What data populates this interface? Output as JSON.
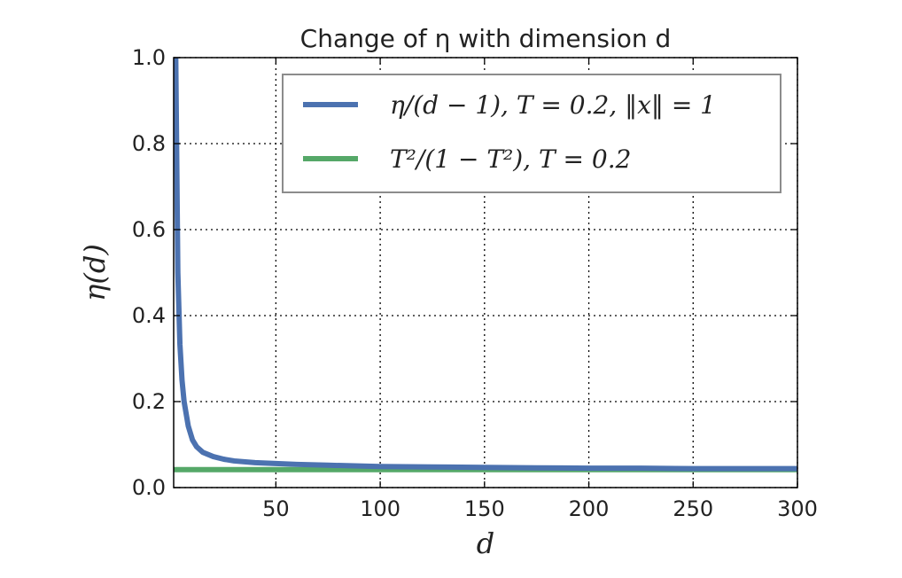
{
  "chart_data": {
    "type": "line",
    "title": "Change of η with dimension d",
    "xlabel": "d",
    "ylabel": "η(d)",
    "xlim": [
      1,
      300
    ],
    "ylim": [
      0.0,
      1.0
    ],
    "xticks": [
      50,
      100,
      150,
      200,
      250,
      300
    ],
    "yticks": [
      0.0,
      0.2,
      0.4,
      0.6,
      0.8,
      1.0
    ],
    "xtick_labels": [
      "50",
      "100",
      "150",
      "200",
      "250",
      "300"
    ],
    "ytick_labels": [
      "0.0",
      "0.2",
      "0.4",
      "0.6",
      "0.8",
      "1.0"
    ],
    "grid": true,
    "legend_position": "top-right",
    "series": [
      {
        "name": "η/(d − 1), T = 0.2, ‖x‖ = 1",
        "color": "#4c72b0",
        "x": [
          2,
          3,
          4,
          5,
          6,
          8,
          10,
          12,
          15,
          20,
          25,
          30,
          40,
          50,
          60,
          75,
          100,
          125,
          150,
          175,
          200,
          225,
          250,
          275,
          300
        ],
        "y": [
          1.0,
          0.5,
          0.333,
          0.25,
          0.2,
          0.143,
          0.111,
          0.095,
          0.082,
          0.072,
          0.066,
          0.062,
          0.058,
          0.056,
          0.054,
          0.052,
          0.049,
          0.048,
          0.047,
          0.046,
          0.045,
          0.045,
          0.044,
          0.044,
          0.044
        ]
      },
      {
        "name": "T²/(1 − T²), T = 0.2",
        "color": "#55a868",
        "x": [
          1,
          300
        ],
        "y": [
          0.0417,
          0.0417
        ]
      }
    ]
  }
}
